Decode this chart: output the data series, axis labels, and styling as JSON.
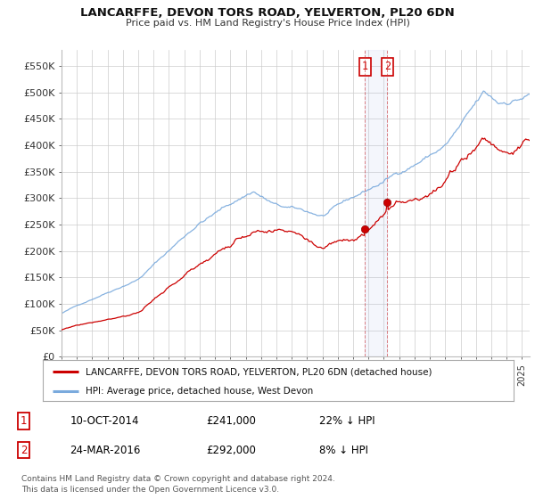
{
  "title": "LANCARFFE, DEVON TORS ROAD, YELVERTON, PL20 6DN",
  "subtitle": "Price paid vs. HM Land Registry's House Price Index (HPI)",
  "ylabel_ticks": [
    "£0",
    "£50K",
    "£100K",
    "£150K",
    "£200K",
    "£250K",
    "£300K",
    "£350K",
    "£400K",
    "£450K",
    "£500K",
    "£550K"
  ],
  "ytick_vals": [
    0,
    50000,
    100000,
    150000,
    200000,
    250000,
    300000,
    350000,
    400000,
    450000,
    500000,
    550000
  ],
  "ylim": [
    0,
    580000
  ],
  "legend_red": "LANCARFFE, DEVON TORS ROAD, YELVERTON, PL20 6DN (detached house)",
  "legend_blue": "HPI: Average price, detached house, West Devon",
  "point1_date": "10-OCT-2014",
  "point1_price": "£241,000",
  "point1_hpi": "22% ↓ HPI",
  "point1_x": 2014.78,
  "point1_y": 241000,
  "point2_date": "24-MAR-2016",
  "point2_price": "£292,000",
  "point2_hpi": "8% ↓ HPI",
  "point2_x": 2016.23,
  "point2_y": 292000,
  "vline1_x": 2014.78,
  "vline2_x": 2016.23,
  "red_color": "#cc0000",
  "blue_color": "#7aaadd",
  "point_color": "#cc0000",
  "bg_color": "#ffffff",
  "grid_color": "#cccccc",
  "footnote": "Contains HM Land Registry data © Crown copyright and database right 2024.\nThis data is licensed under the Open Government Licence v3.0.",
  "xmin": 1995.0,
  "xmax": 2025.5,
  "n_months": 367
}
